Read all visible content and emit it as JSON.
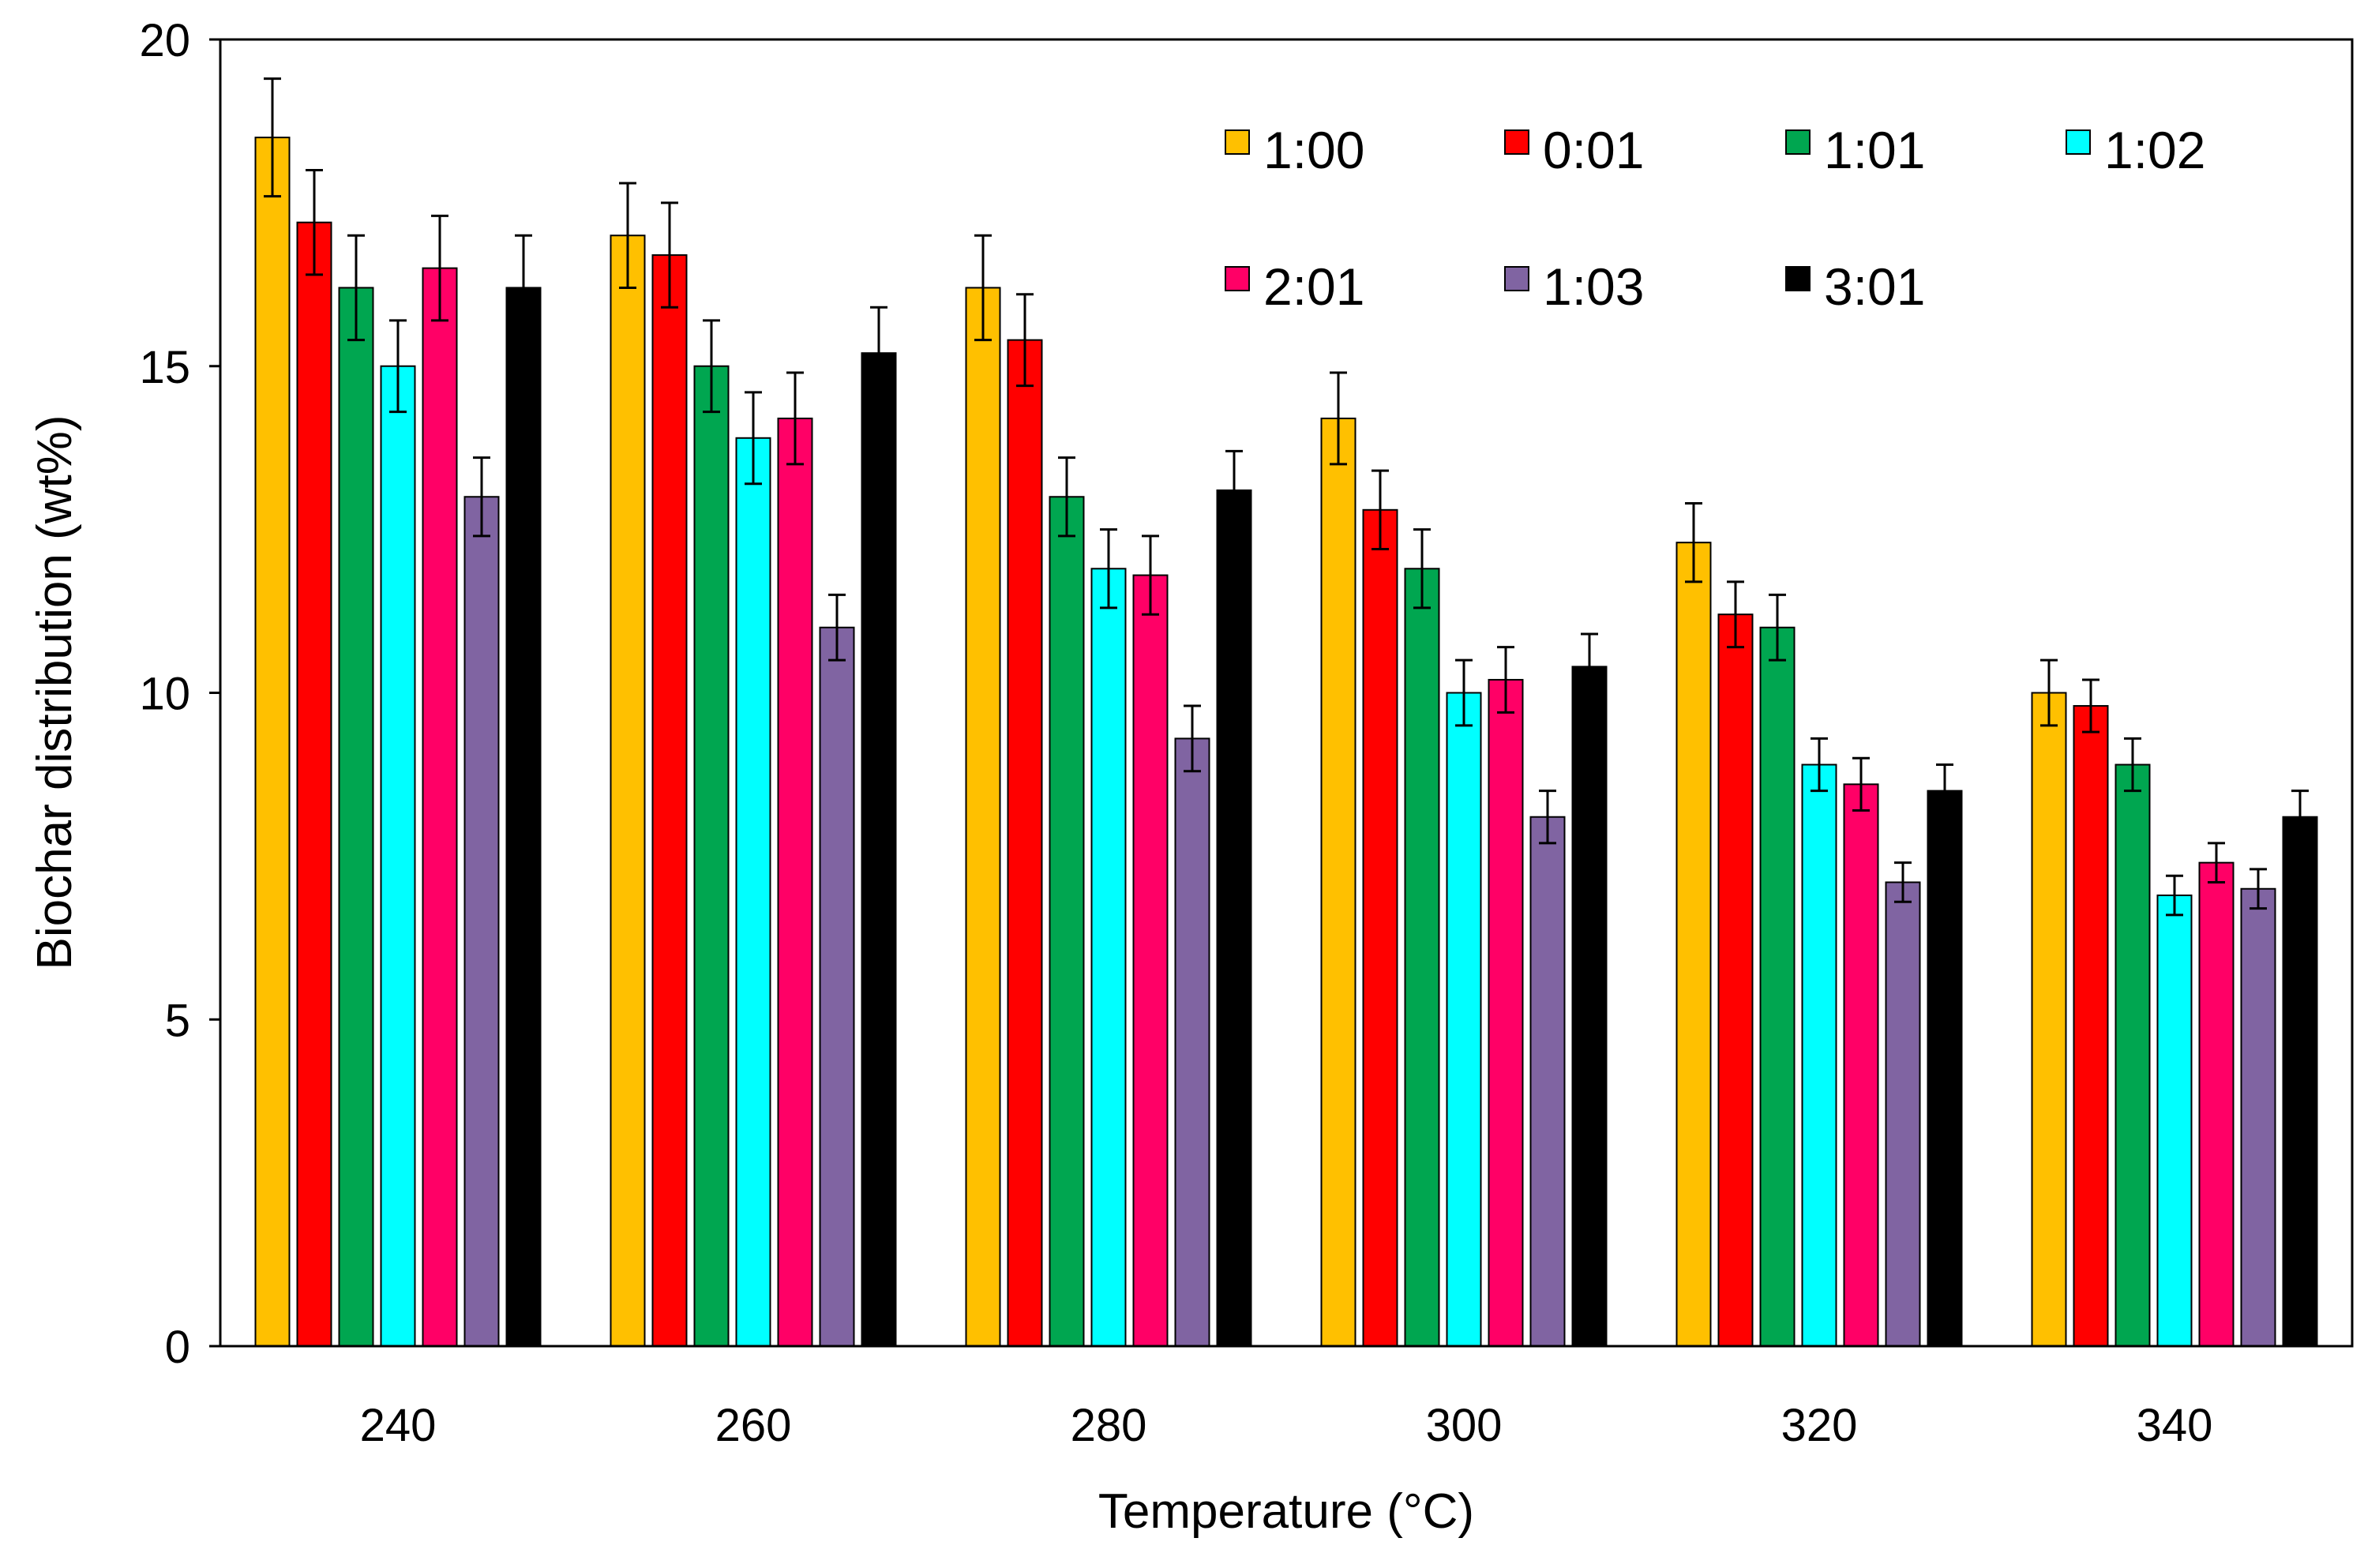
{
  "chart_data": {
    "type": "bar",
    "title": "",
    "xlabel": "Temperature (°C)",
    "ylabel": "Biochar distribution (wt%)",
    "ylim": [
      0,
      20
    ],
    "yticks": [
      "0",
      "5",
      "10",
      "15",
      "20"
    ],
    "grid": false,
    "legend_position": "top-right",
    "categories": [
      "240",
      "260",
      "280",
      "300",
      "320",
      "340"
    ],
    "series": [
      {
        "name": "1:00",
        "color": "#FFC000",
        "values": [
          18.5,
          17.0,
          16.2,
          14.2,
          12.3,
          10.0
        ],
        "errors": [
          0.9,
          0.8,
          0.8,
          0.7,
          0.6,
          0.5
        ]
      },
      {
        "name": "0:01",
        "color": "#FF0000",
        "values": [
          17.2,
          16.7,
          15.4,
          12.8,
          11.2,
          9.8
        ],
        "errors": [
          0.8,
          0.8,
          0.7,
          0.6,
          0.5,
          0.4
        ]
      },
      {
        "name": "1:01",
        "color": "#00A650",
        "values": [
          16.2,
          15.0,
          13.0,
          11.9,
          11.0,
          8.9
        ],
        "errors": [
          0.8,
          0.7,
          0.6,
          0.6,
          0.5,
          0.4
        ]
      },
      {
        "name": "1:02",
        "color": "#00FFFF",
        "values": [
          15.0,
          13.9,
          11.9,
          10.0,
          8.9,
          6.9
        ],
        "errors": [
          0.7,
          0.7,
          0.6,
          0.5,
          0.4,
          0.3
        ]
      },
      {
        "name": "2:01",
        "color": "#FF0066",
        "values": [
          16.5,
          14.2,
          11.8,
          10.2,
          8.6,
          7.4
        ],
        "errors": [
          0.8,
          0.7,
          0.6,
          0.5,
          0.4,
          0.3
        ]
      },
      {
        "name": "1:03",
        "color": "#8064A2",
        "values": [
          13.0,
          11.0,
          9.3,
          8.1,
          7.1,
          7.0
        ],
        "errors": [
          0.6,
          0.5,
          0.5,
          0.4,
          0.3,
          0.3
        ]
      },
      {
        "name": "3:01",
        "color": "#000000",
        "values": [
          16.2,
          15.2,
          13.1,
          10.4,
          8.5,
          8.1
        ],
        "errors": [
          0.8,
          0.7,
          0.6,
          0.5,
          0.4,
          0.4
        ]
      }
    ]
  }
}
